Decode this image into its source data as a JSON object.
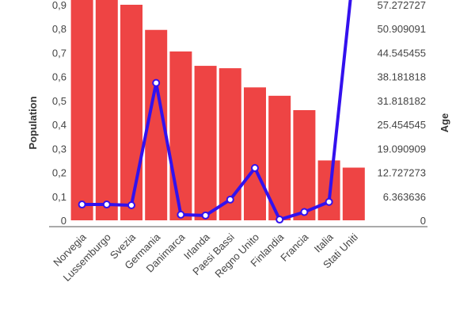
{
  "chart_data": {
    "type": "bar",
    "title": "",
    "categories": [
      "Norvegia",
      "Lussemburgo",
      "Svezia",
      "Germania",
      "Danimarca",
      "Irlanda",
      "Paesi Bassi",
      "Regno Unito",
      "Finlandia",
      "Francia",
      "Italia",
      "Stati Uniti"
    ],
    "series": [
      {
        "name": "Population",
        "type": "bar",
        "axis": "left",
        "color": "#ee4444",
        "values": [
          0.95,
          0.93,
          0.9,
          0.795,
          0.705,
          0.645,
          0.635,
          0.555,
          0.52,
          0.46,
          0.25,
          0.22
        ]
      },
      {
        "name": "Age",
        "type": "line",
        "axis": "right",
        "color": "#3311ee",
        "values": [
          4.2,
          4.2,
          4.0,
          36.5,
          1.5,
          1.3,
          5.5,
          13.9,
          0.2,
          2.2,
          4.9,
          67
        ]
      }
    ],
    "y_left": {
      "label": "Population",
      "min": 0,
      "max": 0.9,
      "ticks": [
        "0",
        "0,1",
        "0,2",
        "0,3",
        "0,4",
        "0,5",
        "0,6",
        "0,7",
        "0,8",
        "0,9"
      ]
    },
    "y_right": {
      "label": "Age",
      "min": 0,
      "max": 57.272727,
      "ticks": [
        "0",
        "6.363636",
        "12.727273",
        "19.090909",
        "25.454545",
        "31.818182",
        "38.181818",
        "44.545455",
        "50.909091",
        "57.272727"
      ]
    },
    "grid": false,
    "legend": "none"
  }
}
